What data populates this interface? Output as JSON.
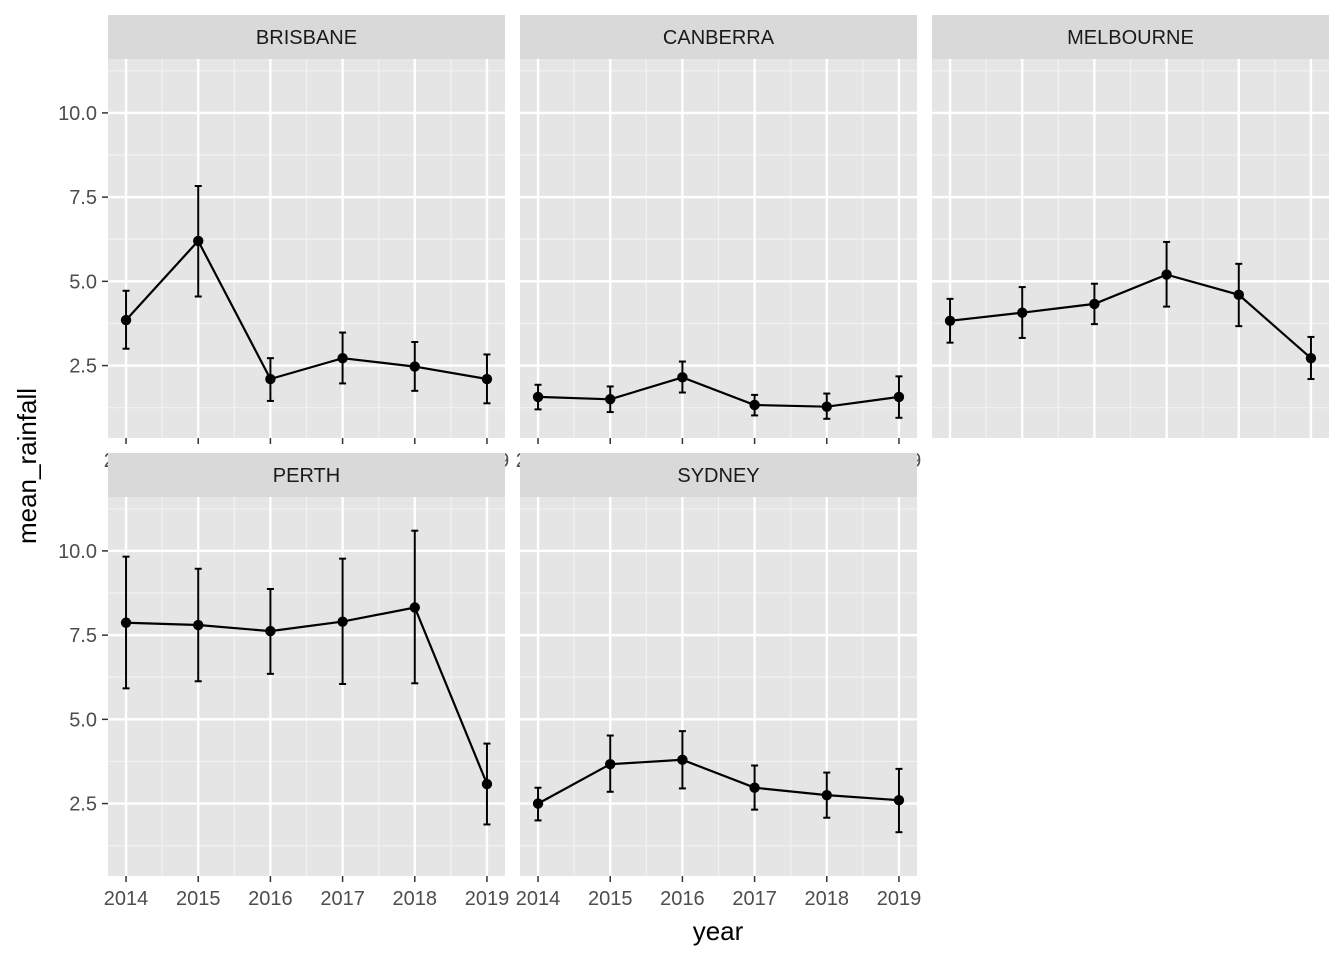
{
  "chart_data": {
    "type": "line",
    "subtype": "faceted line with error bars",
    "xlabel": "year",
    "ylabel": "mean_rainfall",
    "x": [
      2014,
      2015,
      2016,
      2017,
      2018,
      2019
    ],
    "xticks": [
      "2014",
      "2015",
      "2016",
      "2017",
      "2018",
      "2019"
    ],
    "ylim": [
      0.35,
      11.6
    ],
    "yticks": [
      "2.5",
      "5.0",
      "7.5",
      "10.0"
    ],
    "grid": true,
    "panel_background": "#e5e5e5",
    "strip_background": "#d9d9d9",
    "line_color": "#000000",
    "facets": [
      {
        "name": "BRISBANE",
        "values": [
          3.85,
          6.2,
          2.1,
          2.72,
          2.47,
          2.1
        ],
        "lower": [
          3.0,
          4.55,
          1.45,
          1.97,
          1.75,
          1.38
        ],
        "upper": [
          4.72,
          7.83,
          2.72,
          3.48,
          3.2,
          2.83
        ]
      },
      {
        "name": "CANBERRA",
        "values": [
          1.57,
          1.5,
          2.15,
          1.33,
          1.28,
          1.57
        ],
        "lower": [
          1.2,
          1.12,
          1.7,
          1.02,
          0.92,
          0.95
        ],
        "upper": [
          1.93,
          1.88,
          2.62,
          1.63,
          1.67,
          2.18
        ]
      },
      {
        "name": "MELBOURNE",
        "values": [
          3.83,
          4.07,
          4.33,
          5.2,
          4.6,
          2.72
        ],
        "lower": [
          3.18,
          3.32,
          3.73,
          4.25,
          3.67,
          2.1
        ],
        "upper": [
          4.48,
          4.83,
          4.93,
          6.17,
          5.52,
          3.35
        ]
      },
      {
        "name": "PERTH",
        "values": [
          7.87,
          7.8,
          7.62,
          7.9,
          8.32,
          3.08
        ],
        "lower": [
          5.92,
          6.13,
          6.35,
          6.05,
          6.07,
          1.88
        ],
        "upper": [
          9.83,
          9.47,
          8.87,
          9.77,
          10.6,
          4.28
        ]
      },
      {
        "name": "SYDNEY",
        "values": [
          2.5,
          3.67,
          3.8,
          2.97,
          2.75,
          2.6
        ],
        "lower": [
          2.0,
          2.85,
          2.95,
          2.32,
          2.08,
          1.65
        ],
        "upper": [
          2.97,
          4.52,
          4.65,
          3.63,
          3.42,
          3.53
        ]
      }
    ]
  }
}
